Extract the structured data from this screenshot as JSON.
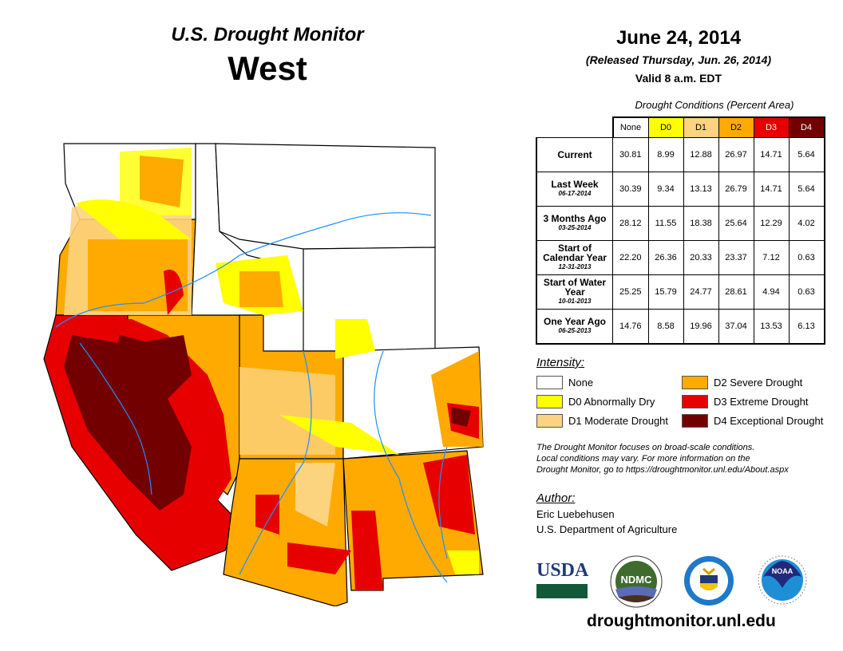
{
  "header": {
    "title": "U.S. Drought Monitor",
    "region": "West",
    "date": "June 24, 2014",
    "released": "(Released Thursday, Jun. 26, 2014)",
    "valid": "Valid 8 a.m. EDT"
  },
  "table": {
    "caption": "Drought Conditions (Percent Area)",
    "columns": [
      {
        "label": "None",
        "color": "#ffffff"
      },
      {
        "label": "D0",
        "color": "#ffff00"
      },
      {
        "label": "D1",
        "color": "#fcd37f"
      },
      {
        "label": "D2",
        "color": "#ffaa00"
      },
      {
        "label": "D3",
        "color": "#e60000"
      },
      {
        "label": "D4",
        "color": "#730000"
      }
    ],
    "rows": [
      {
        "label": "Current",
        "date": "",
        "values": [
          "30.81",
          "8.99",
          "12.88",
          "26.97",
          "14.71",
          "5.64"
        ]
      },
      {
        "label": "Last Week",
        "date": "06-17-2014",
        "values": [
          "30.39",
          "9.34",
          "13.13",
          "26.79",
          "14.71",
          "5.64"
        ]
      },
      {
        "label": "3 Months Ago",
        "date": "03-25-2014",
        "values": [
          "28.12",
          "11.55",
          "18.38",
          "25.64",
          "12.29",
          "4.02"
        ]
      },
      {
        "label": "Start of Calendar Year",
        "date": "12-31-2013",
        "values": [
          "22.20",
          "26.36",
          "20.33",
          "23.37",
          "7.12",
          "0.63"
        ]
      },
      {
        "label": "Start of Water Year",
        "date": "10-01-2013",
        "values": [
          "25.25",
          "15.79",
          "24.77",
          "28.61",
          "4.94",
          "0.63"
        ]
      },
      {
        "label": "One Year Ago",
        "date": "06-25-2013",
        "values": [
          "14.76",
          "8.58",
          "19.96",
          "37.04",
          "13.53",
          "6.13"
        ]
      }
    ]
  },
  "legend": {
    "title": "Intensity:",
    "items": [
      {
        "label": "None",
        "color": "#ffffff"
      },
      {
        "label": "D0 Abnormally Dry",
        "color": "#ffff00"
      },
      {
        "label": "D1 Moderate Drought",
        "color": "#fcd37f"
      },
      {
        "label": "D2 Severe Drought",
        "color": "#ffaa00"
      },
      {
        "label": "D3 Extreme Drought",
        "color": "#e60000"
      },
      {
        "label": "D4 Exceptional Drought",
        "color": "#730000"
      }
    ]
  },
  "note": [
    "The Drought Monitor focuses on broad-scale conditions.",
    "Local conditions may vary. For more information on the",
    "Drought Monitor, go to https://droughtmonitor.unl.edu/About.aspx"
  ],
  "author": {
    "title": "Author:",
    "name": "Eric Luebehusen",
    "org": "U.S. Department of Agriculture"
  },
  "logos": {
    "usda": "USDA",
    "ndmc": "NDMC",
    "noaa": "NOAA"
  },
  "url": "droughtmonitor.unl.edu"
}
